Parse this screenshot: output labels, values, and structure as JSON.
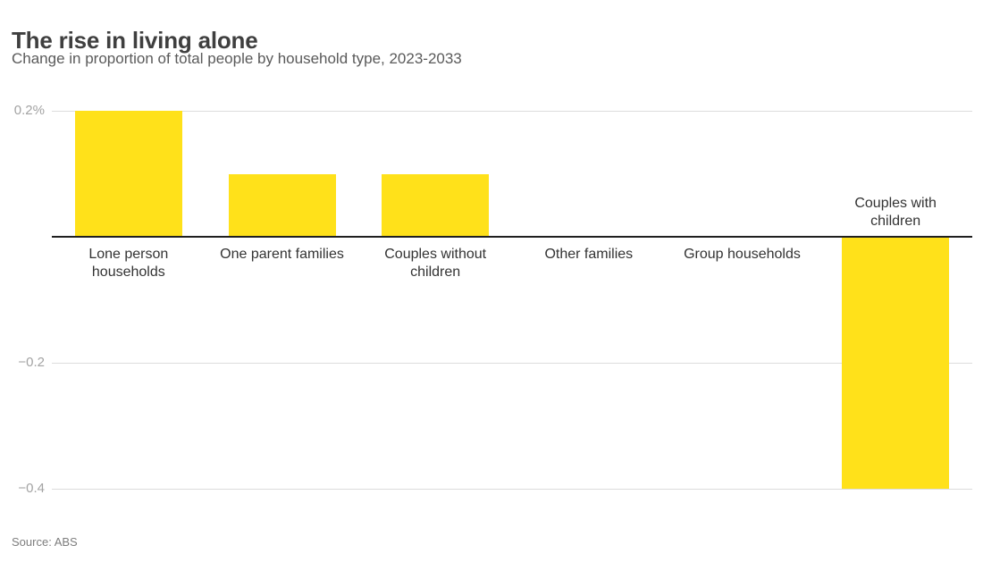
{
  "header": {
    "title": "The rise in living alone",
    "subtitle": "Change in proportion of total people by household type, 2023-2033"
  },
  "source": "Source: ABS",
  "chart_data": {
    "type": "bar",
    "title": "The rise in living alone",
    "subtitle": "Change in proportion of total people by household type, 2023-2033",
    "unit": "percentage points",
    "categories": [
      "Lone person households",
      "One parent families",
      "Couples without children",
      "Other families",
      "Group households",
      "Couples with children"
    ],
    "category_label_lines": [
      [
        "Lone person",
        "households"
      ],
      [
        "One parent families"
      ],
      [
        "Couples without",
        "children"
      ],
      [
        "Other families"
      ],
      [
        "Group households"
      ],
      [
        "Couples with",
        "children"
      ]
    ],
    "values": [
      0.2,
      0.1,
      0.1,
      0,
      0,
      -0.4
    ],
    "yticks": [
      {
        "value": 0.2,
        "label": "0.2%"
      },
      {
        "value": -0.2,
        "label": "−0.2"
      },
      {
        "value": -0.4,
        "label": "−0.4"
      }
    ],
    "ylim": [
      -0.45,
      0.25
    ],
    "grid": true,
    "legend": false,
    "bar_color": "#ffe11a",
    "gridline_color": "#dcdcdc",
    "zero_line_color": "#1f1f1f",
    "source": "Source: ABS"
  }
}
